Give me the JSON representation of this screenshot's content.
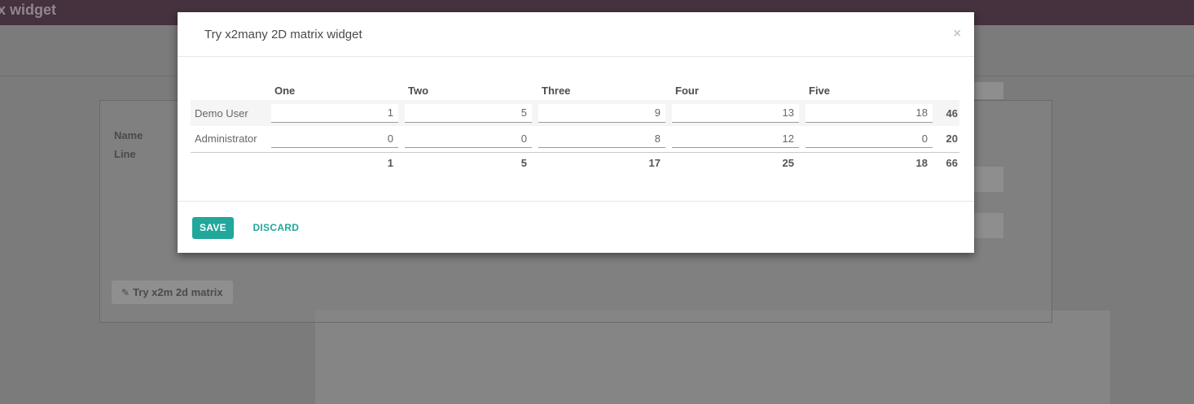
{
  "topbar": {
    "title": "x widget"
  },
  "background": {
    "name_label": "Name",
    "line_label": "Line",
    "matrix_button": {
      "icon": "✎",
      "label": "Try x2m 2d matrix"
    }
  },
  "modal": {
    "title": "Try x2many 2D matrix widget",
    "close_glyph": "×",
    "matrix": {
      "columns": [
        "One",
        "Two",
        "Three",
        "Four",
        "Five"
      ],
      "rows": [
        {
          "label": "Demo User",
          "values": [
            1,
            5,
            9,
            13,
            18
          ],
          "total": 46
        },
        {
          "label": "Administrator",
          "values": [
            0,
            0,
            8,
            12,
            0
          ],
          "total": 20
        }
      ],
      "column_totals": [
        1,
        5,
        17,
        25,
        18
      ],
      "grand_total": 66
    },
    "footer": {
      "save_label": "SAVE",
      "discard_label": "DISCARD"
    }
  },
  "colors": {
    "accent_teal": "#21a79b",
    "topbar_purple": "#46313f",
    "backdrop_gray": "#7b7b7b"
  }
}
